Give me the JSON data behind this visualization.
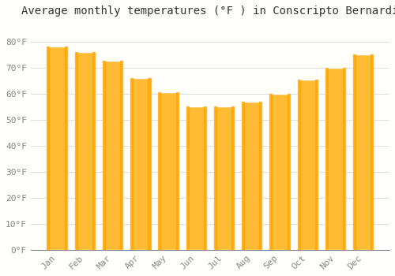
{
  "title": "Average monthly temperatures (°F ) in Conscripto Bernardi",
  "months": [
    "Jan",
    "Feb",
    "Mar",
    "Apr",
    "May",
    "Jun",
    "Jul",
    "Aug",
    "Sep",
    "Oct",
    "Nov",
    "Dec"
  ],
  "values": [
    78,
    76,
    72.5,
    66,
    60.5,
    55,
    55,
    57,
    60,
    65.5,
    70,
    75
  ],
  "bar_color_face": "#FFBB33",
  "bar_color_left": "#FFA500",
  "background_color": "#FFFFFB",
  "grid_color": "#E0E0E0",
  "ylim": [
    0,
    88
  ],
  "yticks": [
    0,
    10,
    20,
    30,
    40,
    50,
    60,
    70,
    80
  ],
  "title_fontsize": 10,
  "tick_fontsize": 8,
  "tick_label_color": "#888888",
  "title_color": "#333333"
}
